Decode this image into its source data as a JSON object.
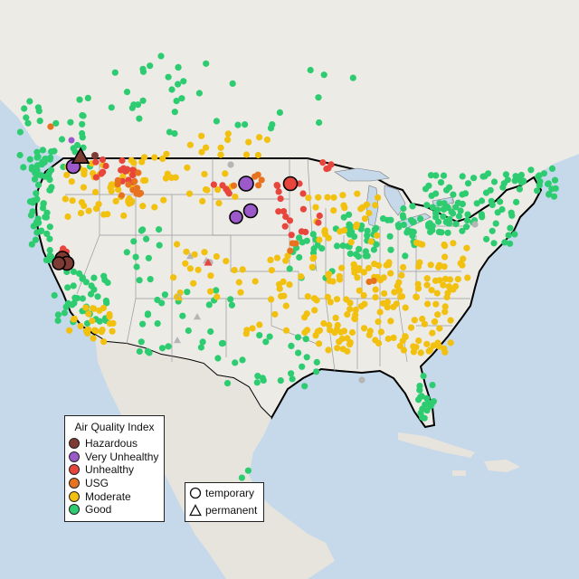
{
  "legend": {
    "title": "Air Quality Index",
    "items": [
      {
        "label": "Hazardous",
        "color": "#7e3b33",
        "key": "hazardous"
      },
      {
        "label": "Very Unhealthy",
        "color": "#9b59c9",
        "key": "very-unhealthy"
      },
      {
        "label": "Unhealthy",
        "color": "#e8453c",
        "key": "unhealthy"
      },
      {
        "label": "USG",
        "color": "#e8731f",
        "key": "usg"
      },
      {
        "label": "Moderate",
        "color": "#f2c00f",
        "key": "moderate"
      },
      {
        "label": "Good",
        "color": "#2ecc71",
        "key": "good"
      }
    ]
  },
  "shape_legend": {
    "items": [
      {
        "label": "temporary",
        "icon": "circle-icon"
      },
      {
        "label": "permanent",
        "icon": "triangle-icon"
      }
    ]
  },
  "colors": {
    "ocean": "#c6d9ea",
    "land": "#ecebe6",
    "mexico_canada": "#e7e4dd",
    "great_lakes": "#c6d9ea",
    "border": "#000000",
    "state_lines": "#9a9a9a",
    "permanent_grey": "#b5b5b5"
  }
}
